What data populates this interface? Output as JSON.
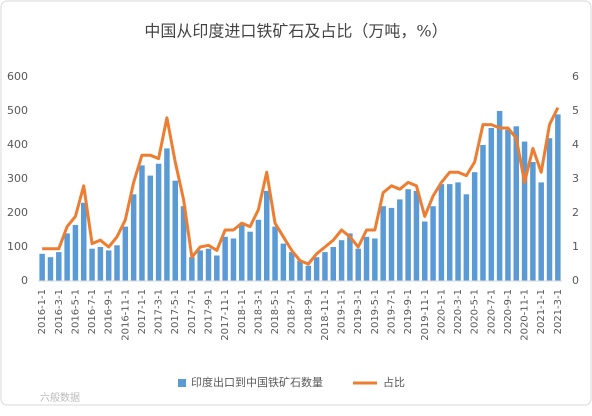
{
  "chart_data": {
    "type": "bar_line",
    "title": "中国从印度进口铁矿石及占比（万吨，%）",
    "categories": [
      "2016-1-1",
      null,
      "2016-3-1",
      null,
      "2016-5-1",
      null,
      "2016-7-1",
      null,
      "2016-9-1",
      null,
      "2016-11-1",
      null,
      "2017-1-1",
      null,
      "2017-3-1",
      null,
      "2017-5-1",
      null,
      "2017-7-1",
      null,
      "2017-9-1",
      null,
      "2017-11-1",
      null,
      "2018-1-1",
      null,
      "2018-3-1",
      null,
      "2018-5-1",
      null,
      "2018-7-1",
      null,
      "2018-9-1",
      null,
      "2018-11-1",
      null,
      "2019-1-1",
      null,
      "2019-3-1",
      null,
      "2019-5-1",
      null,
      "2019-7-1",
      null,
      "2019-9-1",
      null,
      "2019-11-1",
      null,
      "2020-1-1",
      null,
      "2020-3-1",
      null,
      "2020-5-1",
      null,
      "2020-7-1",
      null,
      "2020-9-1",
      null,
      "2020-11-1",
      null,
      "2021-1-1",
      null,
      "2021-3-1"
    ],
    "series": [
      {
        "name": "印度出口到中国铁矿石数量",
        "type": "bar",
        "color": "#5b9bd5",
        "axis": "y",
        "values": [
          80,
          70,
          85,
          140,
          165,
          230,
          95,
          100,
          90,
          105,
          160,
          255,
          340,
          310,
          345,
          390,
          295,
          220,
          70,
          90,
          95,
          75,
          130,
          125,
          165,
          145,
          180,
          265,
          160,
          110,
          85,
          60,
          45,
          70,
          85,
          100,
          120,
          140,
          95,
          130,
          125,
          220,
          215,
          240,
          270,
          265,
          175,
          220,
          285,
          285,
          290,
          255,
          320,
          400,
          450,
          500,
          445,
          455,
          410,
          350,
          290,
          420,
          490
        ]
      },
      {
        "name": "占比",
        "type": "line",
        "color": "#ed7d31",
        "axis": "y2",
        "values": [
          0.95,
          0.95,
          0.95,
          1.6,
          1.9,
          2.8,
          1.1,
          1.2,
          1.0,
          1.3,
          1.8,
          2.9,
          3.7,
          3.7,
          3.6,
          4.8,
          3.5,
          2.4,
          0.7,
          1.0,
          1.05,
          0.9,
          1.5,
          1.5,
          1.7,
          1.6,
          2.1,
          3.2,
          1.7,
          1.3,
          0.9,
          0.6,
          0.5,
          0.8,
          1.0,
          1.2,
          1.5,
          1.3,
          1.0,
          1.5,
          1.5,
          2.6,
          2.8,
          2.7,
          2.9,
          2.8,
          1.9,
          2.5,
          2.9,
          3.2,
          3.2,
          3.1,
          3.5,
          4.6,
          4.6,
          4.5,
          4.5,
          4.2,
          2.9,
          3.9,
          3.2,
          4.6,
          5.1
        ]
      }
    ],
    "ylim": [
      0,
      600
    ],
    "yticks": [
      0,
      100,
      200,
      300,
      400,
      500,
      600
    ],
    "y2lim": [
      0,
      6
    ],
    "y2ticks": [
      0,
      1,
      2,
      3,
      4,
      5,
      6
    ],
    "grid": false,
    "legend": "bottom",
    "watermark": "六般数据"
  }
}
